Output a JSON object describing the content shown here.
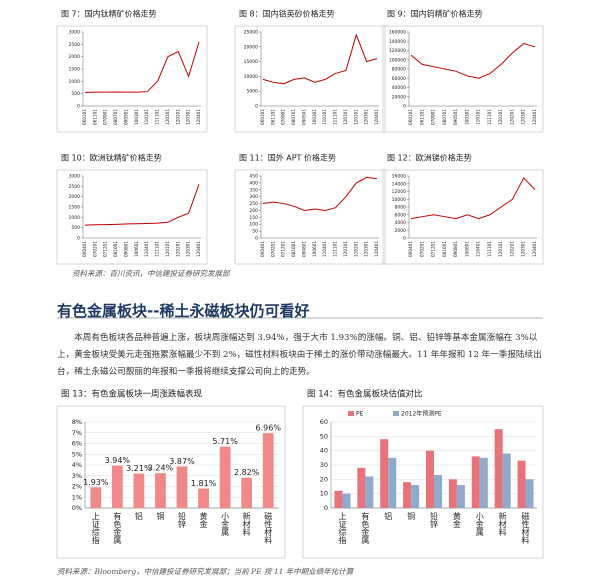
{
  "chart_data": [
    {
      "type": "line",
      "title": "图 7：国内钛精矿价格走势",
      "color": "#c00000",
      "categories": [
        "060101",
        "061101",
        "070901",
        "080701",
        "090501",
        "100301",
        "110101",
        "111101",
        "120101",
        "120201",
        "120301",
        "120401"
      ],
      "values": [
        550,
        560,
        560,
        570,
        560,
        560,
        580,
        1000,
        2000,
        2200,
        1200,
        2600
      ],
      "ylim": [
        0,
        3000
      ],
      "yticks": [
        0,
        500,
        1000,
        1500,
        2000,
        2500,
        3000
      ]
    },
    {
      "type": "line",
      "title": "图 8：国内锆英砂价格走势",
      "color": "#c00000",
      "categories": [
        "060101",
        "061101",
        "070901",
        "080701",
        "090501",
        "100301",
        "110101",
        "111101",
        "120101",
        "120201",
        "120301",
        "120401"
      ],
      "values": [
        9000,
        8000,
        7500,
        9000,
        9500,
        8000,
        9000,
        11000,
        12000,
        24000,
        15000,
        16000
      ],
      "ylim": [
        0,
        25000
      ],
      "yticks": [
        0,
        5000,
        10000,
        15000,
        20000,
        25000
      ]
    },
    {
      "type": "line",
      "title": "图 9：国内钨精矿价格走势",
      "color": "#c00000",
      "categories": [
        "060101",
        "061101",
        "070901",
        "080701",
        "090501",
        "100301",
        "110101",
        "111101",
        "120101",
        "120201",
        "120301",
        "120401"
      ],
      "values": [
        110000,
        90000,
        85000,
        80000,
        75000,
        65000,
        60000,
        70000,
        90000,
        115000,
        135000,
        128000
      ],
      "ylim": [
        0,
        160000
      ],
      "yticks": [
        0,
        20000,
        40000,
        60000,
        80000,
        100000,
        120000,
        140000,
        160000
      ]
    },
    {
      "type": "line",
      "title": "图 10：欧洲钛精矿价格走势",
      "color": "#c00000",
      "categories": [
        "060401",
        "070201",
        "071201",
        "081001",
        "090801",
        "100601",
        "110401",
        "111101",
        "120101",
        "120201",
        "120301",
        "120401"
      ],
      "values": [
        620,
        640,
        650,
        660,
        680,
        690,
        700,
        720,
        760,
        1000,
        1200,
        2600
      ],
      "ylim": [
        0,
        3000
      ],
      "yticks": [
        0,
        500,
        1000,
        1500,
        2000,
        2500,
        3000
      ]
    },
    {
      "type": "line",
      "title": "图 11：国外 APT 价格走势",
      "color": "#c00000",
      "categories": [
        "060401",
        "070201",
        "071201",
        "081001",
        "090801",
        "100601",
        "110401",
        "111101",
        "120101",
        "120201",
        "120301",
        "120401"
      ],
      "values": [
        250,
        260,
        250,
        230,
        200,
        210,
        200,
        220,
        300,
        400,
        440,
        430
      ],
      "ylim": [
        0,
        450
      ],
      "yticks": [
        0,
        50,
        100,
        150,
        200,
        250,
        300,
        350,
        400,
        450
      ]
    },
    {
      "type": "line",
      "title": "图 12：欧洲锑价格走势",
      "color": "#c00000",
      "categories": [
        "060401",
        "070201",
        "071201",
        "081001",
        "090801",
        "100601",
        "110401",
        "111101",
        "120101",
        "120201",
        "120301",
        "120401"
      ],
      "values": [
        5000,
        5500,
        6000,
        5500,
        5000,
        6000,
        5000,
        6000,
        8000,
        10000,
        15500,
        12500
      ],
      "ylim": [
        0,
        16000
      ],
      "yticks": [
        0,
        2000,
        4000,
        6000,
        8000,
        10000,
        12000,
        14000,
        16000
      ]
    },
    {
      "type": "bar",
      "title": "图 13：有色金属板块一周涨跌幅表现",
      "color": "#f08a8a",
      "grid": true,
      "categories": [
        "上证综指",
        "有色金属",
        "铝",
        "铜",
        "铅锌",
        "黄金",
        "小金属",
        "新材料",
        "磁性材料"
      ],
      "values": [
        1.93,
        3.94,
        3.21,
        3.24,
        3.87,
        1.81,
        5.71,
        2.82,
        6.96
      ],
      "value_labels": [
        "1.93%",
        "3.94%",
        "3.21%",
        "3.24%",
        "3.87%",
        "1.81%",
        "5.71%",
        "2.82%",
        "6.96%"
      ],
      "ylim": [
        0,
        8
      ],
      "yticks": [
        {
          "value": 0,
          "label": "0%"
        },
        {
          "value": 1,
          "label": "1%"
        },
        {
          "value": 2,
          "label": "2%"
        },
        {
          "value": 3,
          "label": "3%"
        },
        {
          "value": 4,
          "label": "4%"
        },
        {
          "value": 5,
          "label": "5%"
        },
        {
          "value": 6,
          "label": "6%"
        },
        {
          "value": 7,
          "label": "7%"
        },
        {
          "value": 8,
          "label": "8%"
        }
      ]
    },
    {
      "type": "grouped_bar",
      "title": "图 14：有色金属板块估值对比",
      "grid": true,
      "categories": [
        "上证综指",
        "有色金属",
        "铝",
        "铜",
        "铅锌",
        "黄金",
        "小金属",
        "新材料",
        "磁性材料"
      ],
      "series": [
        {
          "name": "PE",
          "color": "#e8737a",
          "values": [
            12,
            28,
            48,
            18,
            40,
            20,
            36,
            55,
            33
          ]
        },
        {
          "name": "2012年预测PE",
          "color": "#8faacc",
          "values": [
            10,
            22,
            35,
            16,
            23,
            16,
            35,
            38,
            20
          ]
        }
      ],
      "ylim": [
        0,
        60
      ],
      "yticks": [
        0,
        10,
        20,
        30,
        40,
        50,
        60
      ]
    }
  ],
  "figure_source_1": "资料来源：百川资讯，中信建投证券研究发展部",
  "heading": "有色金属板块--稀土永磁板块仍可看好",
  "paragraph": "本周有色板块各品种普遍上涨，板块周涨幅达到 3.94%，强于大市 1.93%的涨幅。铜、铝、铅锌等基本金属涨幅在 3%以上，黄金板块受美元走强拖累涨幅最少不到 2%，磁性材料板块由于稀土的涨价带动涨幅最大。11 年年报和 12 年一季报陆续出台，稀土永磁公司靓丽的年报和一季报将继续支撑公司向上的走势。",
  "figure_source_2": "资料来源：Bloomberg，中信建投证券研究发展部；当前 PE 按 11 年中期业绩年化计算"
}
